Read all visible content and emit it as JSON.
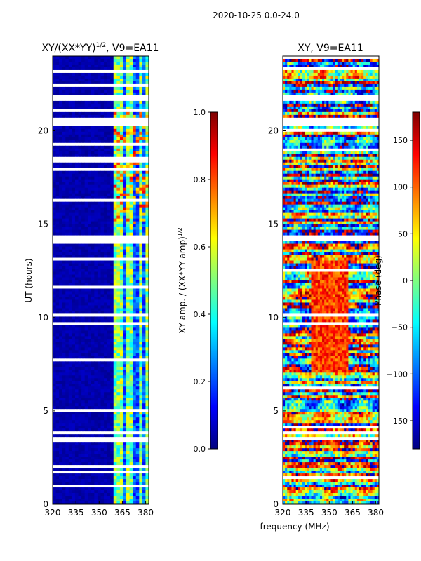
{
  "figure": {
    "suptitle": "2020-10-25 0.0-24.0",
    "xlabel_shared": "frequency (MHz)"
  },
  "colors": {
    "jet": [
      "#00007f",
      "#0000ff",
      "#007fff",
      "#00ffff",
      "#7fff7f",
      "#ffff00",
      "#ff7f00",
      "#ff0000",
      "#7f0000"
    ],
    "gap": "#ffffff"
  },
  "chart_data": [
    {
      "type": "heatmap",
      "title_main": "XY/(XX*YY)",
      "title_sup": "1/2",
      "title_tail": ", V9=EA11",
      "xlabel": "",
      "ylabel": "UT (hours)",
      "xlim": [
        320,
        382
      ],
      "ylim": [
        0,
        24
      ],
      "xticks": [
        320,
        335,
        350,
        365,
        380
      ],
      "yticks": [
        0,
        5,
        10,
        15,
        20
      ],
      "value_range": [
        0,
        1
      ],
      "colorbar": {
        "label": "XY amp. / (XX*YY amp)",
        "label_sup": "1/2",
        "range": [
          0,
          1
        ],
        "ticks": [
          "0.0",
          "0.2",
          "0.4",
          "0.6",
          "0.8",
          "1.0"
        ]
      },
      "band_edges_mhz": [
        360,
        365,
        368,
        371,
        375,
        377,
        379,
        382
      ],
      "gaps_ut": [
        [
          21.6,
          21.9
        ],
        [
          20.3,
          20.7
        ],
        [
          14.1,
          14.4
        ],
        [
          10.0,
          10.2
        ],
        [
          9.6,
          9.8
        ],
        [
          3.8,
          3.95
        ],
        [
          3.5,
          3.65
        ]
      ]
    },
    {
      "type": "heatmap",
      "title_main": "XY, V9=EA11",
      "xlabel": "frequency (MHz)",
      "ylabel": "",
      "xlim": [
        320,
        382
      ],
      "ylim": [
        0,
        24
      ],
      "xticks": [
        320,
        335,
        350,
        365,
        380
      ],
      "yticks": [
        0,
        5,
        10,
        15,
        20
      ],
      "value_range": [
        -180,
        180
      ],
      "colorbar": {
        "label": "Phase (deg)",
        "range": [
          -180,
          180
        ],
        "ticks": [
          "−150",
          "−100",
          "−50",
          "0",
          "50",
          "100",
          "150"
        ]
      },
      "gaps_ut": [
        [
          21.6,
          21.9
        ],
        [
          20.3,
          20.7
        ],
        [
          14.1,
          14.4
        ],
        [
          10.0,
          10.2
        ],
        [
          9.6,
          9.8
        ],
        [
          3.8,
          3.95
        ],
        [
          3.5,
          3.65
        ]
      ]
    }
  ]
}
